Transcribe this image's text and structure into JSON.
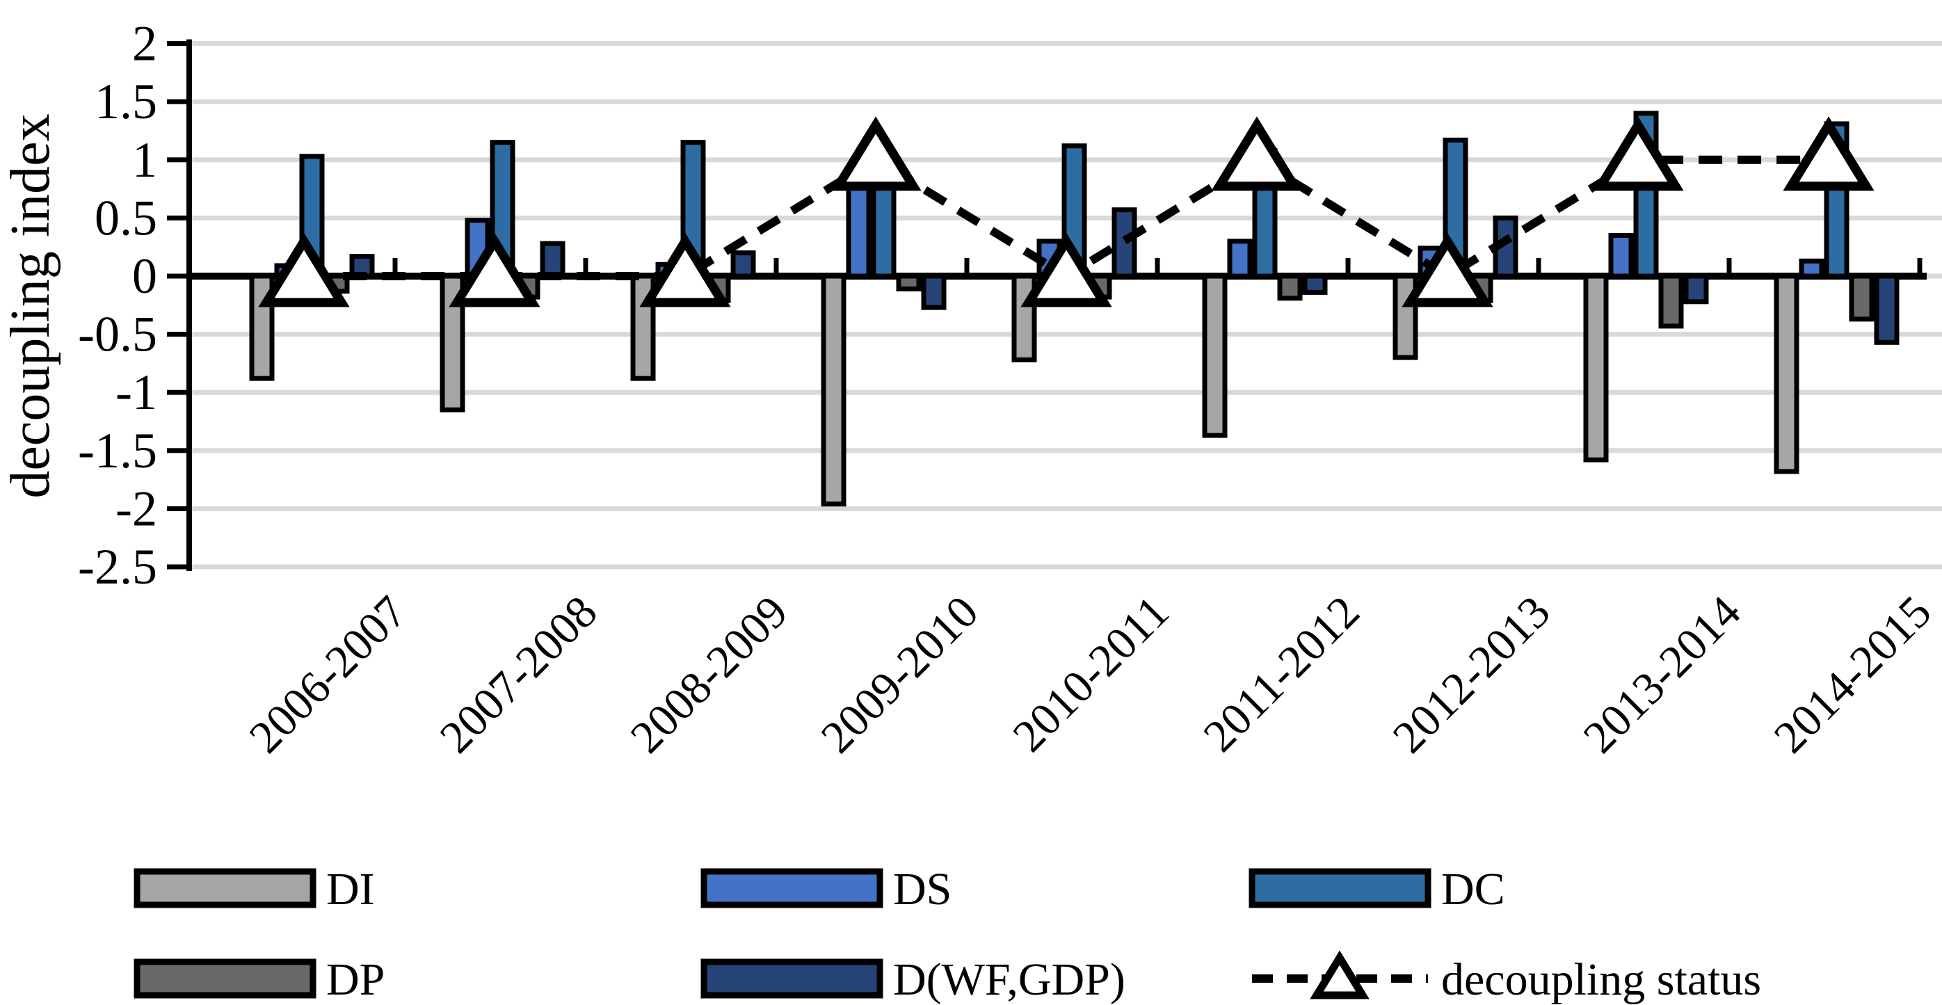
{
  "figure": {
    "background": "#FFFFFF"
  },
  "chart_data": {
    "type": "bar",
    "title": "",
    "xlabel": "",
    "ylabel": "decoupling index",
    "ylim": [
      -2.5,
      2
    ],
    "ytick_labels": [
      "2",
      "1.5",
      "1",
      "0.5",
      "0",
      "-0.5",
      "-1",
      "-1.5",
      "-2",
      "-2.5"
    ],
    "ytick_values": [
      2,
      1.5,
      1,
      0.5,
      0,
      -0.5,
      -1,
      -1.5,
      -2,
      -2.5
    ],
    "grid": true,
    "grid_color": "#D9D9D9",
    "axis_color": "#000000",
    "legend_position": "bottom",
    "categories": [
      "2006-2007",
      "2007-2008",
      "2008-2009",
      "2009-2010",
      "2010-2011",
      "2011-2012",
      "2012-2013",
      "2013-2014",
      "2014-2015"
    ],
    "series": [
      {
        "name": "DI",
        "color": "#A6A6A6",
        "values": [
          -0.88,
          -1.15,
          -0.88,
          -1.96,
          -0.72,
          -1.37,
          -0.7,
          -1.58,
          -1.68
        ]
      },
      {
        "name": "DS",
        "color": "#4472C4",
        "values": [
          0.09,
          0.48,
          0.1,
          0.8,
          0.3,
          0.3,
          0.24,
          0.35,
          0.13
        ]
      },
      {
        "name": "DC",
        "color": "#2E6DA4",
        "values": [
          1.03,
          1.15,
          1.15,
          1.02,
          1.12,
          1.08,
          1.17,
          1.4,
          1.31
        ]
      },
      {
        "name": "DP",
        "color": "#696969",
        "values": [
          -0.13,
          -0.18,
          -0.21,
          -0.11,
          -0.18,
          -0.19,
          -0.21,
          -0.43,
          -0.37
        ]
      },
      {
        "name": "D(WF,GDP)",
        "color": "#264478",
        "values": [
          0.17,
          0.28,
          0.2,
          -0.27,
          0.57,
          -0.14,
          0.5,
          -0.22,
          -0.57
        ]
      }
    ],
    "line_series": {
      "name": "decoupling status",
      "color": "#000000",
      "dashed": true,
      "marker": "triangle",
      "marker_fill": "#FFFFFF",
      "values": [
        0,
        0,
        0,
        1,
        0,
        1,
        0,
        1,
        1
      ]
    },
    "legend_items": [
      "DI",
      "DS",
      "DC",
      "DP",
      "D(WF,GDP)",
      "decoupling status"
    ]
  }
}
